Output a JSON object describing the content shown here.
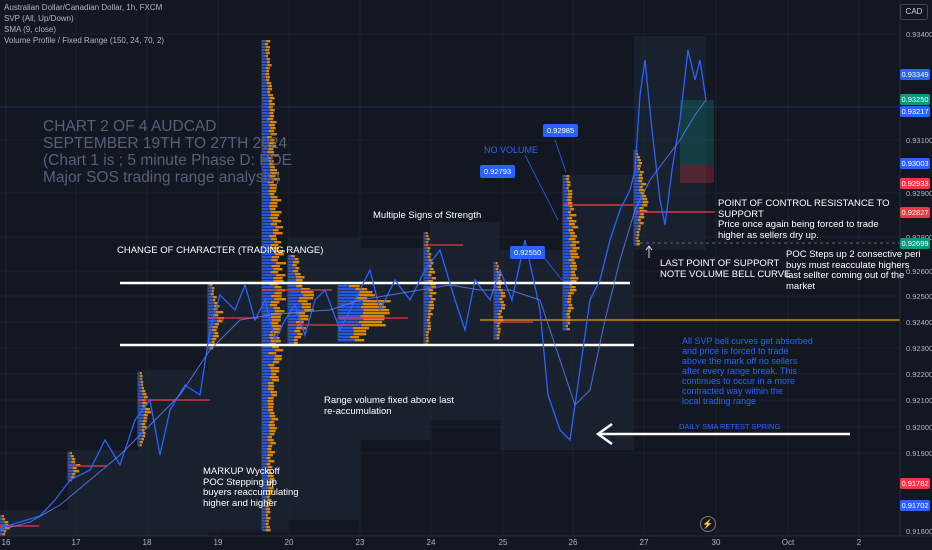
{
  "header": {
    "symbol_line": "Australian Dollar/Canadian Dollar, 1h, FXCM",
    "indicators": [
      "SVP (All, Up/Down)",
      "SMA (9, close)",
      "Volume Profile / Fixed Range (150, 24, 70, 2)"
    ]
  },
  "currency_button": "CAD",
  "annotations": {
    "title": "CHART 2 OF 4 AUDCAD\nSEPTEMBER 19TH TO 27TH 2024\n(Chart 1 is ; 5 minute Phase D: POE\nMajor SOS trading range analysis)",
    "no_volume": "NO VOLUME",
    "multiple_sos": "Multiple Signs of Strength",
    "choch": "CHANGE OF CHARACTER (TRADING RANGE)",
    "poc_resistance": "POINT OF CONTROL RESISTANCE TO SUPPORT\nPrice once again being forced to trade\nhigher as sellers dry up.",
    "last_support": "LAST POINT OF SUPPORT\nNOTE VOLUME BELL CURVE",
    "poc_steps": "POC Steps up 2 consective peri\nbuys must reacculate highers\nlast sellter coming out of the\nmarket",
    "range_volume": "Range volume fixed above last\nre-accumulation",
    "markup": "MARKUP Wyckoff\nPOC Stepping up\nbuyers reaccumulating\nhigher and higher",
    "svp_absorbed": "All SVP bell curves get absorbed\nand price is forced to trade\nabove the mark off no sellers\nafter every range break. This\ncontinues to occur in a more\ncontracted way within the\nlocal trading range",
    "daily_sma": "DAILY SMA RETEST SPRING"
  },
  "point_labels": [
    "0.92985",
    "0.92793",
    "0.92550"
  ],
  "price_axis": {
    "labels": [
      "0.93400",
      "0.93100",
      "0.92900",
      "0.92800",
      "0.92600",
      "0.92500",
      "0.92400",
      "0.92300",
      "0.92200",
      "0.92100",
      "0.92000",
      "0.91900",
      "0.91600"
    ],
    "tags": [
      {
        "value": "0.93349",
        "color": "#2962ff"
      },
      {
        "value": "0.93250",
        "color": "#089981"
      },
      {
        "value": "0.93217",
        "color": "#2962ff"
      },
      {
        "value": "0.93003",
        "color": "#2962ff"
      },
      {
        "value": "0.92933",
        "color": "#f23645"
      },
      {
        "value": "0.92827",
        "color": "#f23645"
      },
      {
        "value": "0.92699",
        "color": "#089981"
      },
      {
        "value": "0.91782",
        "color": "#f23645"
      },
      {
        "value": "0.91702",
        "color": "#2962ff"
      }
    ]
  },
  "time_axis": [
    "16",
    "17",
    "18",
    "19",
    "20",
    "23",
    "24",
    "25",
    "26",
    "27",
    "30",
    "Oct",
    "2"
  ],
  "colors": {
    "background": "#131722",
    "sma": "#2962ff",
    "volume_up": "#2962ff",
    "volume_down": "#ff9800",
    "poc": "#f23645",
    "range_line": "#ffffff"
  }
}
